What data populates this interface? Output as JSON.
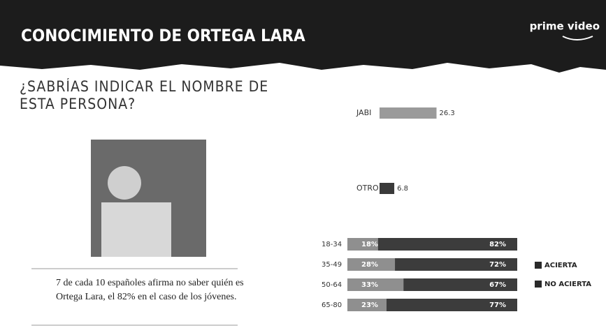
{
  "header": {
    "title": "CONOCIMIENTO DE ORTEGA LARA",
    "brand": "prime video"
  },
  "question": "¿SABRÍAS INDICAR EL NOMBRE DE ESTA PERSONA?",
  "quote": "7 de cada 10 españoles afirma no saber quién es Ortega Lara, el 82% en el caso de los jóvenes.",
  "chart_data": [
    {
      "type": "bar",
      "categories": [
        "JABI",
        "OTRO"
      ],
      "values": [
        26.3,
        6.8
      ],
      "colors": [
        "#9a9a9a",
        "#3a3a3a"
      ]
    },
    {
      "type": "stacked_bar",
      "categories": [
        "18-34",
        "35-49",
        "50-64",
        "65-80"
      ],
      "series": [
        {
          "name": "ACIERTA",
          "color": "#8f8f8f",
          "values": [
            18,
            28,
            33,
            23
          ],
          "value_labels": [
            "18%",
            "28%",
            "33%",
            "23%"
          ]
        },
        {
          "name": "NO ACIERTA",
          "color": "#3c3c3c",
          "values": [
            82,
            72,
            67,
            77
          ],
          "value_labels": [
            "82%",
            "72%",
            "67%",
            "77%"
          ]
        }
      ]
    }
  ]
}
